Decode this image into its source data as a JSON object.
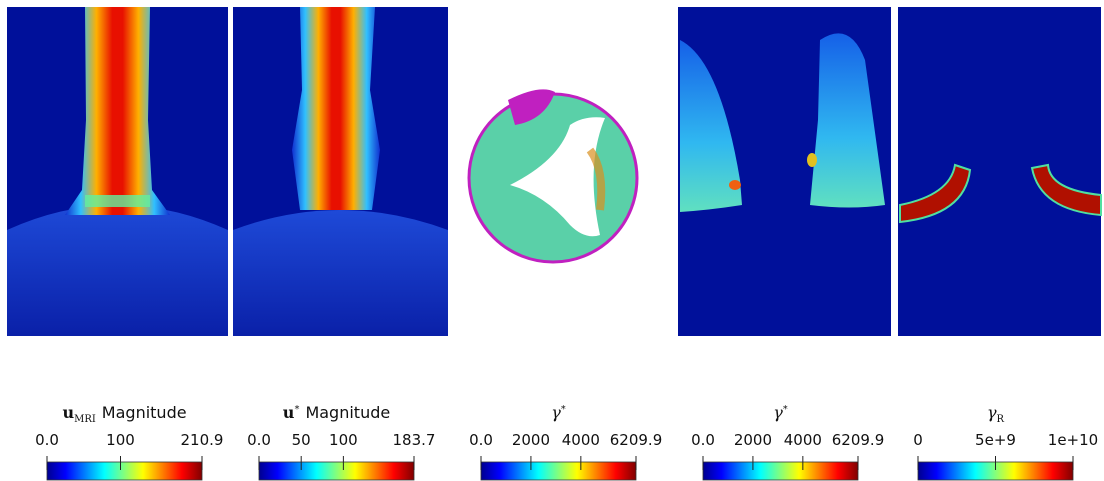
{
  "colorbars": [
    {
      "title": {
        "symbol": "u",
        "sub": "MRI",
        "text": "Magnitude"
      },
      "ticks": [
        {
          "value": 0,
          "label": "0.0"
        },
        100,
        210.9
      ]
    },
    {
      "title": {
        "symbol": "u",
        "sup": "*",
        "text": "Magnitude"
      },
      "ticks": [
        {
          "value": 0,
          "label": "0.0"
        },
        50,
        100,
        183.7
      ]
    },
    {
      "title": {
        "symbol": "γ",
        "sup": "*"
      },
      "ticks": [
        {
          "value": 0,
          "label": "0.0"
        },
        2000,
        4000,
        6209.9
      ]
    },
    {
      "title": {
        "symbol": "γ",
        "sup": "*"
      },
      "ticks": [
        {
          "value": 0,
          "label": "0.0"
        },
        2000,
        4000,
        6209.9
      ]
    },
    {
      "title": {
        "symbol": "γ",
        "sub": "R"
      },
      "ticks": [
        0,
        {
          "value": 5000000000,
          "label": "5e+9"
        },
        {
          "value": 10000000000,
          "label": "1e+10"
        }
      ]
    }
  ]
}
